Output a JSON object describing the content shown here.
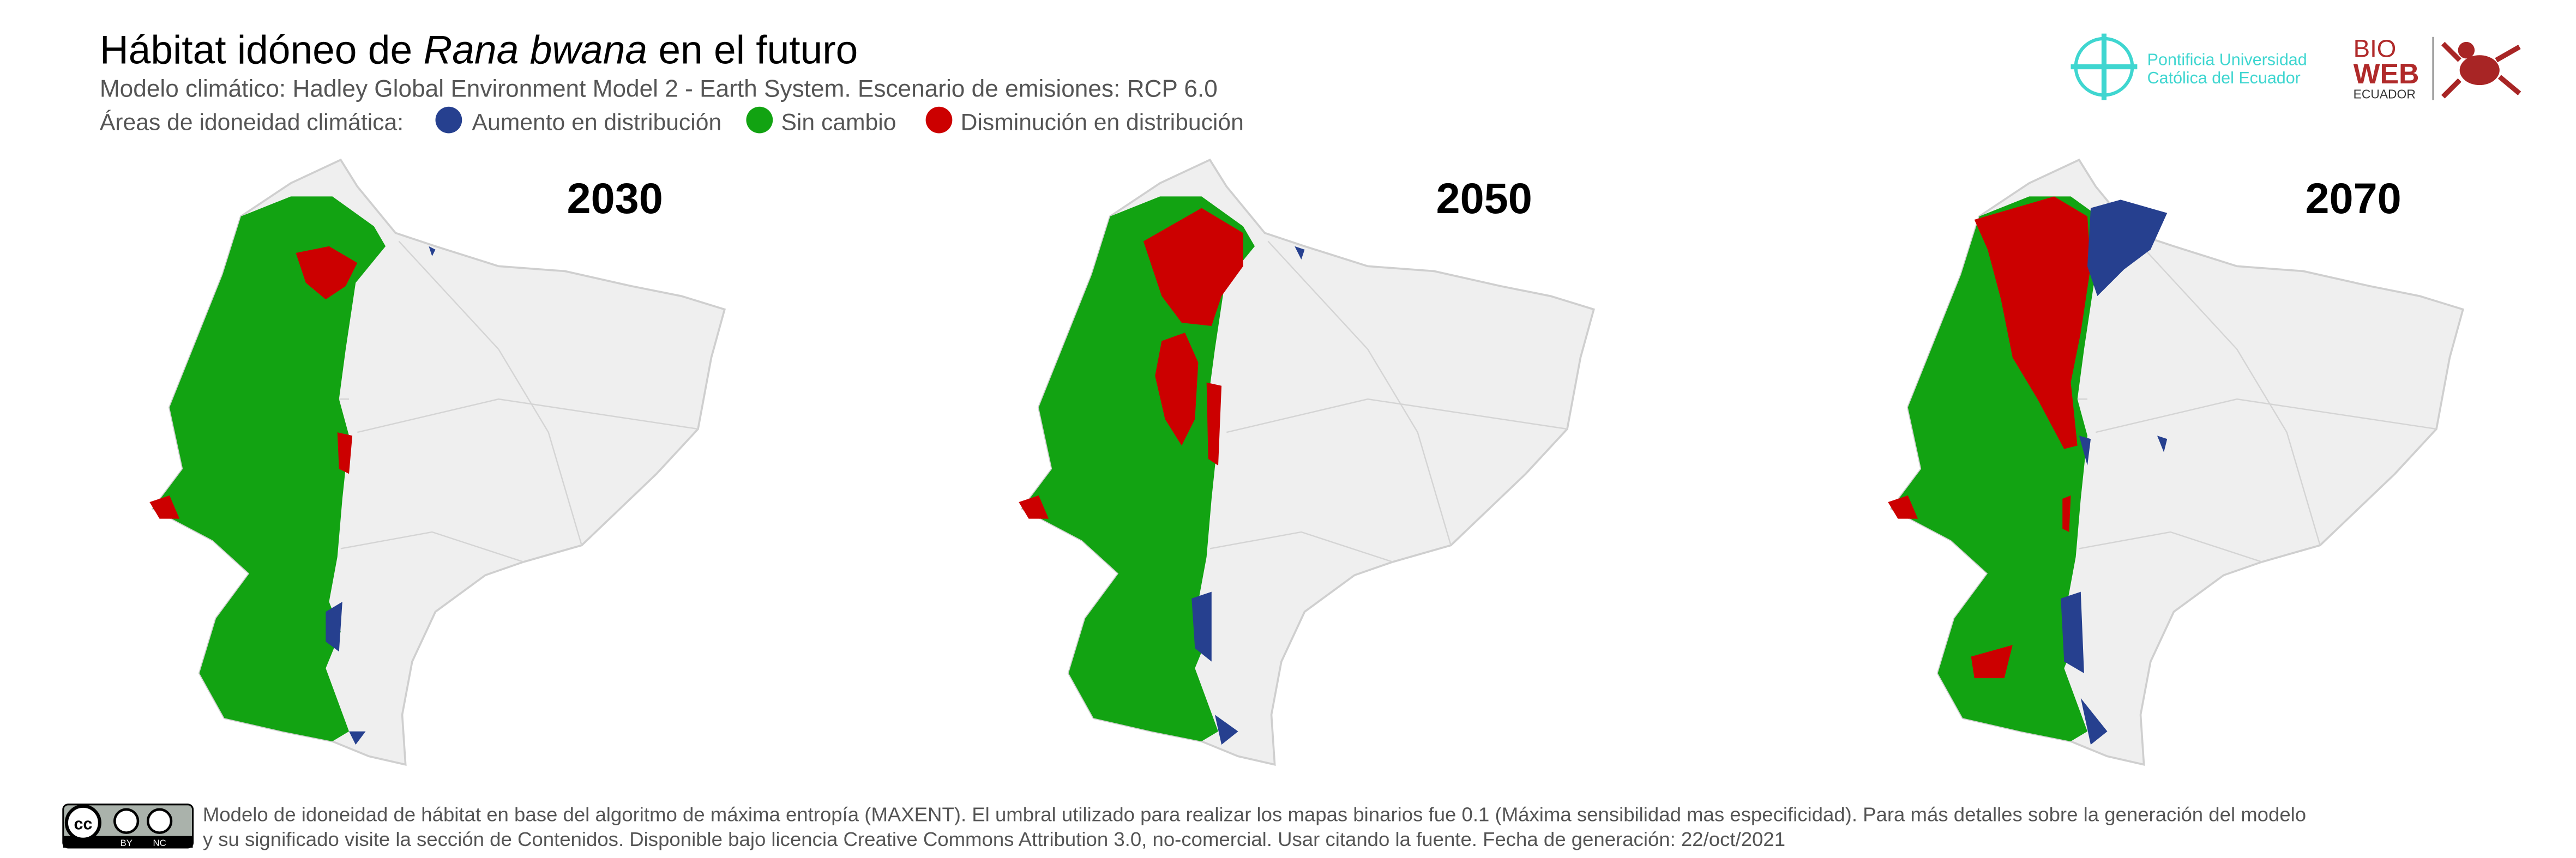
{
  "header": {
    "title_start": "Hábitat idóneo de ",
    "title_species": "Rana bwana",
    "title_end": " en el futuro",
    "subtitle": "Modelo climático: Hadley Global Environment Model 2 - Earth System. Escenario de emisiones: RCP 6.0",
    "legend_label": "Áreas de idoneidad climática:",
    "legend": [
      {
        "label": "Aumento en distribución",
        "color": "#26408f"
      },
      {
        "label": "Sin cambio",
        "color": "#12a312"
      },
      {
        "label": "Disminución en distribución",
        "color": "#cc0000"
      }
    ]
  },
  "logos": {
    "puce_line1": "Pontificia Universidad",
    "puce_line2": "Católica del Ecuador",
    "bioweb_1": "BIO",
    "bioweb_2": "WEB",
    "bioweb_3": "ECUADOR"
  },
  "maps": [
    {
      "year": "2030"
    },
    {
      "year": "2050"
    },
    {
      "year": "2070"
    }
  ],
  "footer": {
    "license_by": "BY",
    "license_nc": "NC",
    "line1": "Modelo de idoneidad de hábitat en base del algoritmo de máxima entropía (MAXENT). El umbral utilizado para realizar los mapas binarios fue 0.1 (Máxima sensibilidad mas especificidad). Para más detalles sobre la generación del modelo",
    "line2": "y su significado visite la sección de Contenidos. Disponible bajo licencia Creative Commons Attribution 3.0, no-comercial. Usar citando la fuente. Fecha de generación: 22/oct/2021"
  }
}
